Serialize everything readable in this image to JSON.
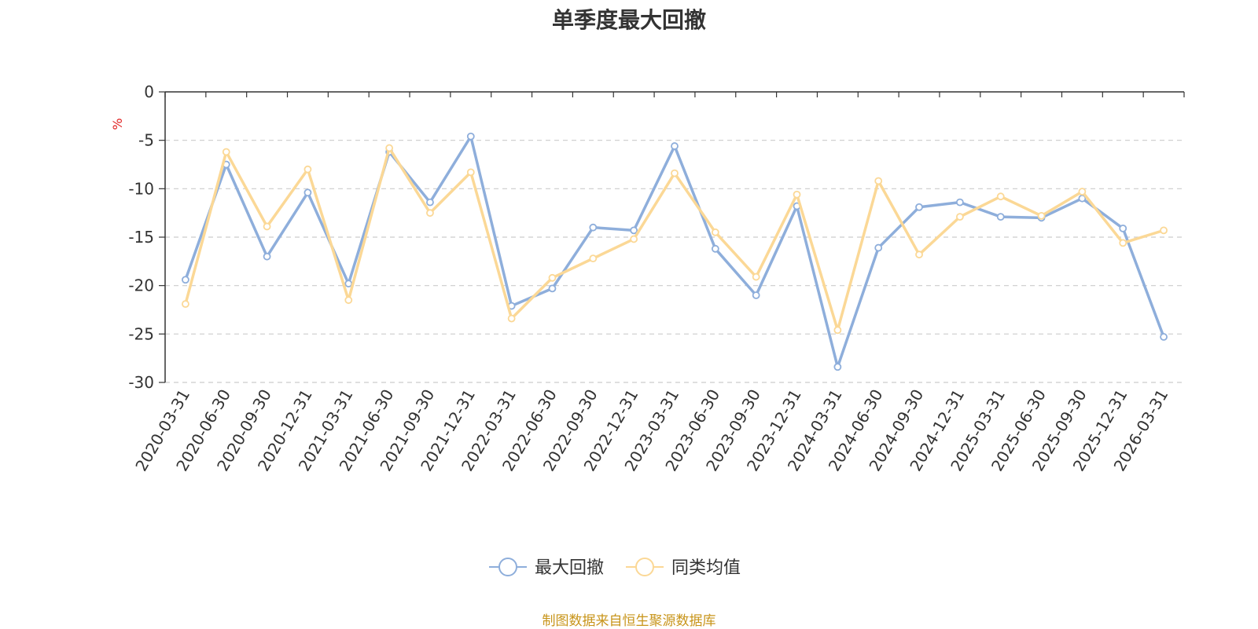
{
  "source_note": "制图数据来自恒生聚源数据库",
  "chart_data": {
    "type": "line",
    "title": "单季度最大回撤",
    "ylabel": "%",
    "ylim": [
      -30,
      0
    ],
    "yticks": [
      0,
      -5,
      -10,
      -15,
      -20,
      -25,
      -30
    ],
    "grid": true,
    "legend_position": "bottom-center",
    "categories": [
      "2020-03-31",
      "2020-06-30",
      "2020-09-30",
      "2020-12-31",
      "2021-03-31",
      "2021-06-30",
      "2021-09-30",
      "2021-12-31",
      "2022-03-31",
      "2022-06-30",
      "2022-09-30",
      "2022-12-31",
      "2023-03-31",
      "2023-06-30",
      "2023-09-30",
      "2023-12-31",
      "2024-03-31",
      "2024-06-30",
      "2024-09-30",
      "2024-12-31",
      "2025-03-31",
      "2025-06-30",
      "2025-09-30",
      "2025-12-31",
      "2026-03-31"
    ],
    "series": [
      {
        "name": "最大回撤",
        "color": "#8eaedb",
        "values": [
          -19.4,
          -7.5,
          -17.0,
          -10.4,
          -19.8,
          -6.2,
          -11.4,
          -4.6,
          -22.1,
          -20.3,
          -14.0,
          -14.3,
          -5.6,
          -16.2,
          -21.0,
          -11.8,
          -28.4,
          -16.1,
          -11.9,
          -11.4,
          -12.9,
          -13.0,
          -11.0,
          -14.1,
          -25.3
        ]
      },
      {
        "name": "同类均值",
        "color": "#fbd896",
        "values": [
          -21.9,
          -6.2,
          -13.9,
          -8.0,
          -21.5,
          -5.8,
          -12.5,
          -8.3,
          -23.4,
          -19.2,
          -17.2,
          -15.2,
          -8.4,
          -14.5,
          -19.1,
          -10.6,
          -24.6,
          -9.2,
          -16.8,
          -12.9,
          -10.8,
          -12.8,
          -10.3,
          -15.6,
          -14.3
        ]
      }
    ]
  }
}
